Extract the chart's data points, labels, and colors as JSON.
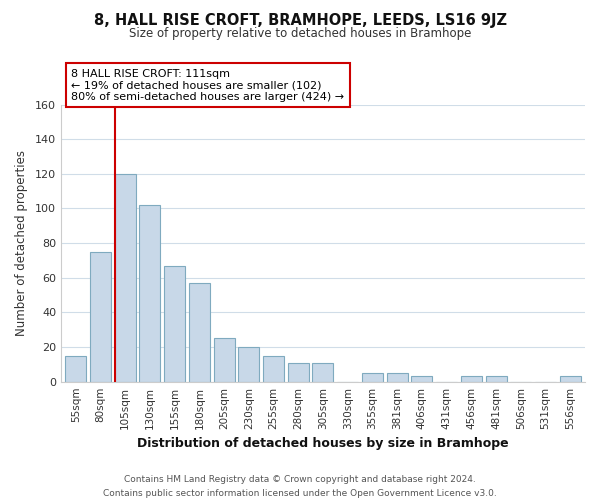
{
  "title": "8, HALL RISE CROFT, BRAMHOPE, LEEDS, LS16 9JZ",
  "subtitle": "Size of property relative to detached houses in Bramhope",
  "xlabel": "Distribution of detached houses by size in Bramhope",
  "ylabel": "Number of detached properties",
  "bar_labels": [
    "55sqm",
    "80sqm",
    "105sqm",
    "130sqm",
    "155sqm",
    "180sqm",
    "205sqm",
    "230sqm",
    "255sqm",
    "280sqm",
    "305sqm",
    "330sqm",
    "355sqm",
    "381sqm",
    "406sqm",
    "431sqm",
    "456sqm",
    "481sqm",
    "506sqm",
    "531sqm",
    "556sqm"
  ],
  "bar_values": [
    15,
    75,
    120,
    102,
    67,
    57,
    25,
    20,
    15,
    11,
    11,
    0,
    5,
    5,
    3,
    0,
    3,
    3,
    0,
    0,
    3
  ],
  "bar_color": "#c8d8e8",
  "bar_edge_color": "#7faabf",
  "highlight_line_color": "#cc0000",
  "ylim": [
    0,
    160
  ],
  "yticks": [
    0,
    20,
    40,
    60,
    80,
    100,
    120,
    140,
    160
  ],
  "annotation_box_text": "8 HALL RISE CROFT: 111sqm\n← 19% of detached houses are smaller (102)\n80% of semi-detached houses are larger (424) →",
  "footer_line1": "Contains HM Land Registry data © Crown copyright and database right 2024.",
  "footer_line2": "Contains public sector information licensed under the Open Government Licence v3.0.",
  "background_color": "#ffffff",
  "plot_bg_color": "#ffffff",
  "grid_color": "#d0dde8"
}
